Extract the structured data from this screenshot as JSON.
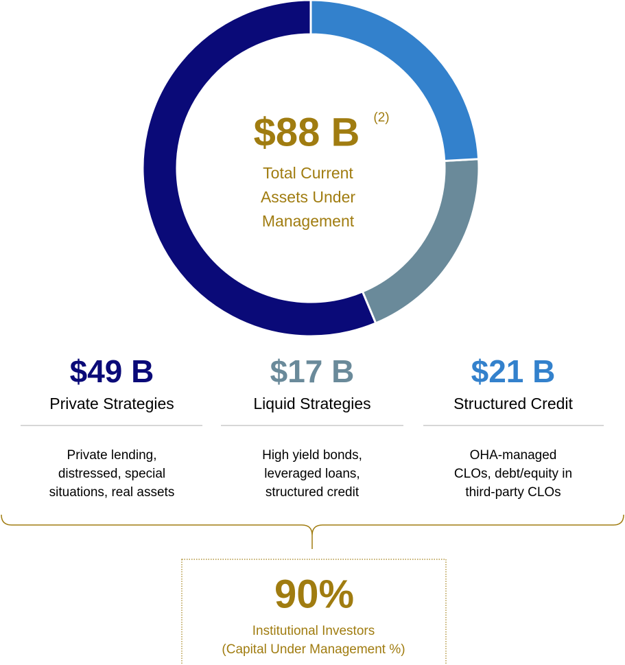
{
  "chart_data": {
    "type": "donut",
    "center": {
      "value_label": "$88 B",
      "note": "(2)",
      "caption": [
        "Total Current",
        "Assets Under",
        "Management"
      ],
      "color": "#a07c10"
    },
    "categories": [
      "Private Strategies",
      "Liquid Strategies",
      "Structured Credit"
    ],
    "values": [
      49,
      17,
      21
    ],
    "value_labels": [
      "$49 B",
      "$17 B",
      "$21 B"
    ],
    "colors": [
      "#0a0a78",
      "#6a8a9a",
      "#3381cc"
    ],
    "descriptions": [
      [
        "Private lending,",
        "distressed, special",
        "situations, real assets"
      ],
      [
        "High yield bonds,",
        "leveraged loans,",
        "structured credit"
      ],
      [
        "OHA-managed",
        "CLOs, debt/equity in",
        "third-party CLOs"
      ]
    ],
    "direction": "counterclockwise",
    "investors": {
      "value": 90,
      "value_label": "90%",
      "caption": [
        "Institutional Investors",
        "(Capital Under Management %)"
      ],
      "color": "#a07c10"
    }
  }
}
